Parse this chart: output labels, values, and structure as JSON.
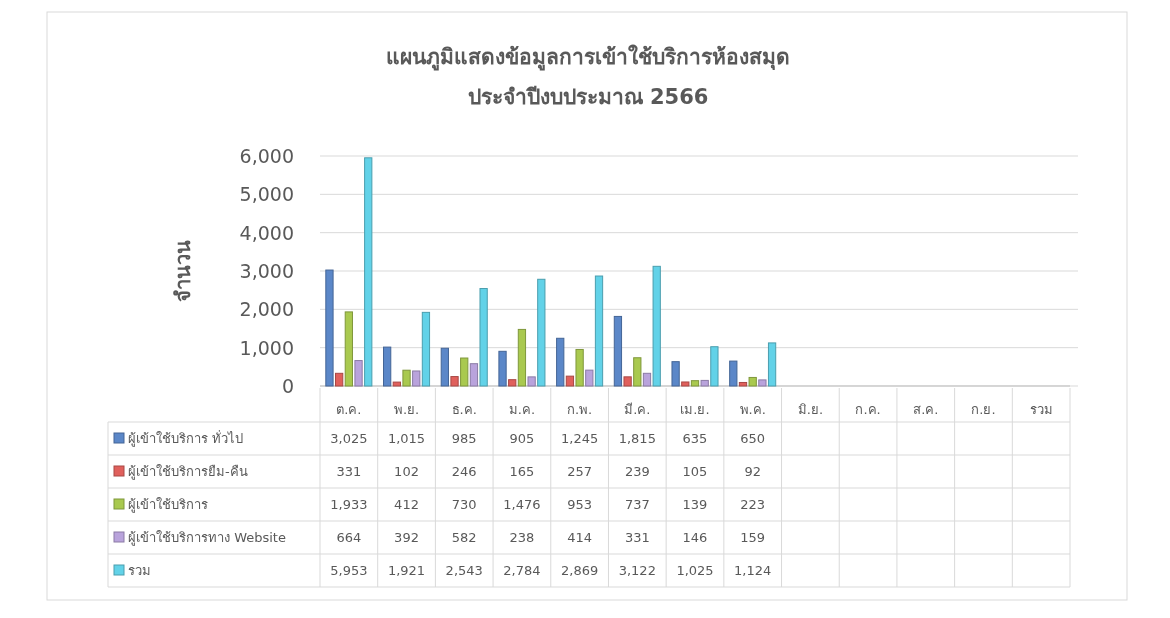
{
  "chart_data": {
    "type": "bar",
    "title": "แผนภูมิแสดงข้อมูลการเข้าใช้บริการห้องสมุด",
    "subtitle": "ประจำปีงบประมาณ 2566",
    "ylabel": "จำนวน",
    "categories": [
      "ต.ค.",
      "พ.ย.",
      "ธ.ค.",
      "ม.ค.",
      "ก.พ.",
      "มี.ค.",
      "เม.ย.",
      "พ.ค.",
      "มิ.ย.",
      "ก.ค.",
      "ส.ค.",
      "ก.ย.",
      "รวม"
    ],
    "ylim": [
      0,
      6000
    ],
    "yticks": [
      0,
      {
        "value": 1000,
        "label": "1,000"
      },
      {
        "value": 2000,
        "label": "2,000"
      },
      {
        "value": 3000,
        "label": "3,000"
      },
      {
        "value": 4000,
        "label": "4,000"
      },
      {
        "value": 5000,
        "label": "5,000"
      },
      {
        "value": 6000,
        "label": "6,000"
      }
    ],
    "grid": "y",
    "legend": "bottom",
    "series": [
      {
        "name": "ผู้เข้าใช้บริการ ทั่วไป",
        "color": "#5b87c8",
        "values": [
          3025,
          1015,
          985,
          905,
          1245,
          1815,
          635,
          650,
          null,
          null,
          null,
          null,
          null
        ],
        "value_labels": [
          "3,025",
          "1,015",
          "985",
          "905",
          "1,245",
          "1,815",
          "635",
          "650",
          null,
          null,
          null,
          null,
          null
        ]
      },
      {
        "name": "ผู้เข้าใช้บริการยืม-คืน",
        "color": "#e0605c",
        "values": [
          331,
          102,
          246,
          165,
          257,
          239,
          105,
          92,
          null,
          null,
          null,
          null,
          null
        ],
        "value_labels": [
          "331",
          "102",
          "246",
          "165",
          "257",
          "239",
          "105",
          "92",
          null,
          null,
          null,
          null,
          null
        ]
      },
      {
        "name": "ผู้เข้าใช้บริการ",
        "color": "#a9c94f",
        "values": [
          1933,
          412,
          730,
          1476,
          953,
          737,
          139,
          223,
          null,
          null,
          null,
          null,
          null
        ],
        "value_labels": [
          "1,933",
          "412",
          "730",
          "1,476",
          "953",
          "737",
          "139",
          "223",
          null,
          null,
          null,
          null,
          null
        ]
      },
      {
        "name": "ผู้เข้าใช้บริการทาง Website",
        "color": "#b9a3dc",
        "values": [
          664,
          392,
          582,
          238,
          414,
          331,
          146,
          159,
          null,
          null,
          null,
          null,
          null
        ],
        "value_labels": [
          "664",
          "392",
          "582",
          "238",
          "414",
          "331",
          "146",
          "159",
          null,
          null,
          null,
          null,
          null
        ]
      },
      {
        "name": "รวม",
        "color": "#62d2e8",
        "values": [
          5953,
          1921,
          2543,
          2784,
          2869,
          3122,
          1025,
          1124,
          null,
          null,
          null,
          null,
          null
        ],
        "value_labels": [
          "5,953",
          "1,921",
          "2,543",
          "2,784",
          "2,869",
          "3,122",
          "1,025",
          "1,124",
          null,
          null,
          null,
          null,
          null
        ]
      }
    ]
  }
}
